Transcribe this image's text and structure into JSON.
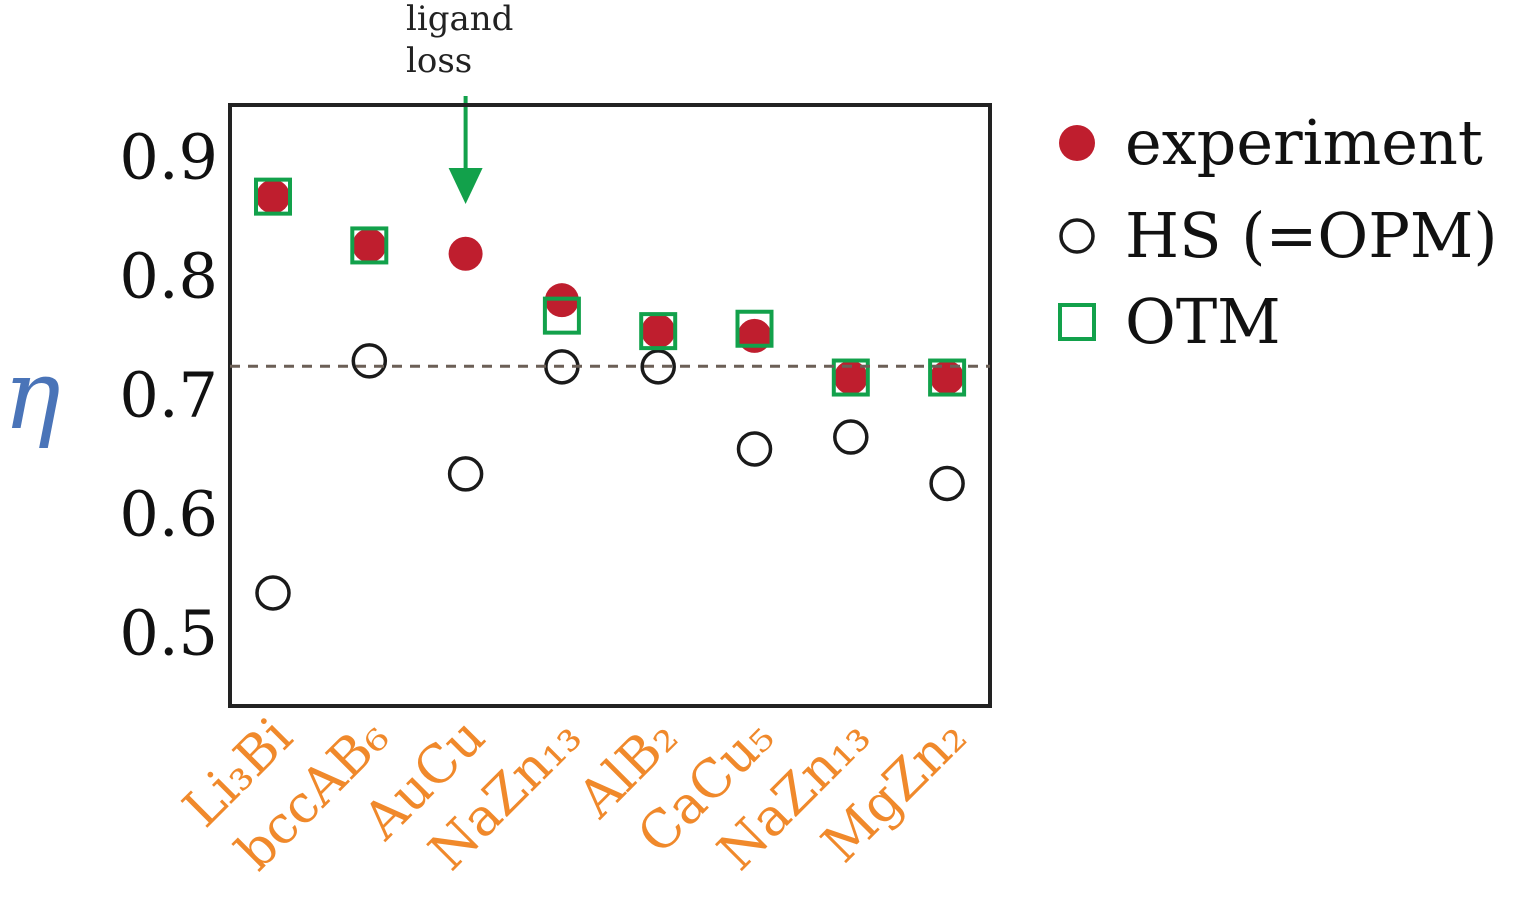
{
  "colors": {
    "experiment": "#bf1e2e",
    "hs": "#1a1a1a",
    "otm": "#12a14b",
    "arrow": "#12a14b",
    "category_label": "#f0892b",
    "y_label": "#4a74b8",
    "reference_line": "#6b5f56",
    "axes": "#222222"
  },
  "chart_data": {
    "type": "scatter",
    "ylabel": "η",
    "ylim": [
      0.44,
      0.945
    ],
    "yticks": [
      "0.5",
      "0.6",
      "0.7",
      "0.8",
      "0.9"
    ],
    "ytick_values": [
      0.5,
      0.6,
      0.7,
      0.8,
      0.9
    ],
    "categories": [
      "Li₃Bi",
      "bccAB₆",
      "AuCu",
      "NaZn₁₃",
      "AlB₂",
      "CaCu₅",
      "NaZn₁₃",
      "MgZn₂"
    ],
    "reference_line": 0.7255,
    "series": [
      {
        "name": "experiment",
        "marker": "filled-circle",
        "values": [
          0.868,
          0.827,
          0.82,
          0.781,
          0.755,
          0.751,
          0.716,
          0.716
        ]
      },
      {
        "name": "HS (=OPM)",
        "marker": "open-circle",
        "values": [
          0.535,
          0.73,
          0.635,
          0.725,
          0.725,
          0.656,
          0.666,
          0.627
        ]
      },
      {
        "name": "OTM",
        "marker": "open-square",
        "values": [
          0.868,
          0.827,
          null,
          0.768,
          0.755,
          0.757,
          0.716,
          0.716
        ]
      }
    ],
    "annotation": {
      "lines": [
        "ligand",
        "loss"
      ],
      "category_index": 2
    },
    "legend_position": "right"
  }
}
